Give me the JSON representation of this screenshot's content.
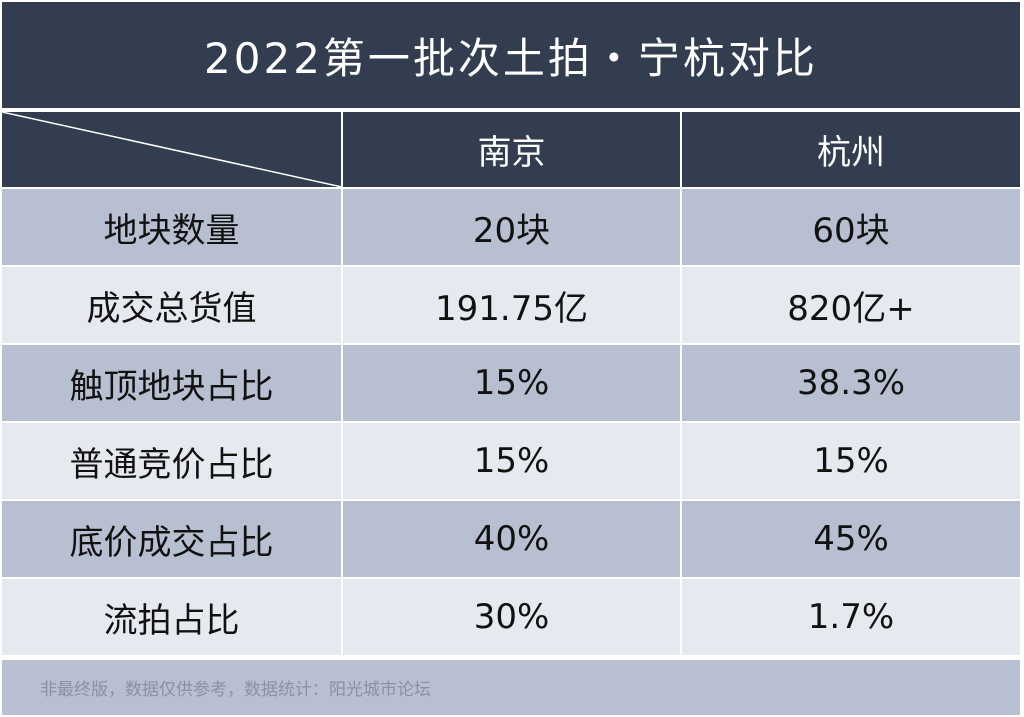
{
  "chart_data": {
    "type": "table",
    "title": "2022第一批次土拍・宁杭对比",
    "columns": [
      "南京",
      "杭州"
    ],
    "rows": [
      {
        "label": "地块数量",
        "values": [
          "20块",
          "60块"
        ]
      },
      {
        "label": "成交总货值",
        "values": [
          "191.75亿",
          "820亿+"
        ]
      },
      {
        "label": "触顶地块占比",
        "values": [
          "15%",
          "38.3%"
        ]
      },
      {
        "label": "普通竞价占比",
        "values": [
          "15%",
          "15%"
        ]
      },
      {
        "label": "底价成交占比",
        "values": [
          "40%",
          "45%"
        ]
      },
      {
        "label": "流拍占比",
        "values": [
          "30%",
          "1.7%"
        ]
      }
    ],
    "footnote": "非最终版，数据仅供参考，数据统计：阳光城市论坛"
  },
  "colors": {
    "header_bg": "#323d4f",
    "row_dark": "#b8bfd0",
    "row_light": "#e7e9f0",
    "footer_text": "#8a91a3"
  }
}
